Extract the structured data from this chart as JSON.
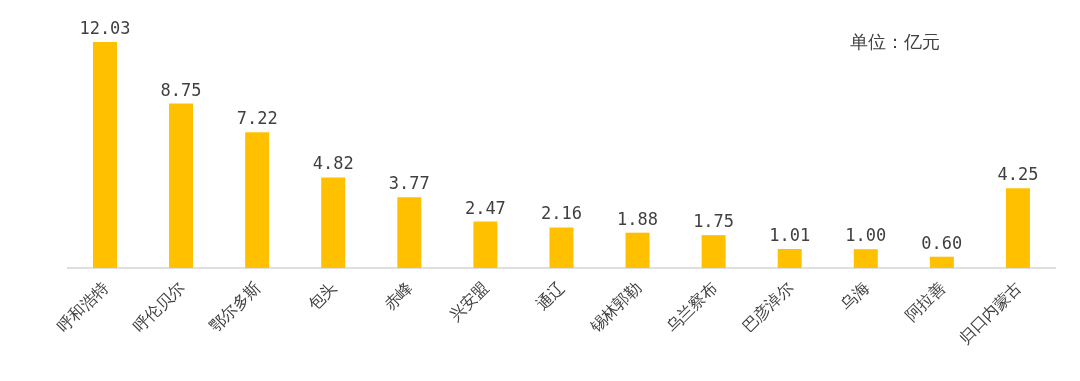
{
  "chart_data": {
    "type": "bar",
    "categories": [
      "呼和浩特",
      "呼伦贝尔",
      "鄂尔多斯",
      "包头",
      "赤峰",
      "兴安盟",
      "通辽",
      "锡林郭勒",
      "乌兰察布",
      "巴彦淖尔",
      "乌海",
      "阿拉善",
      "归口内蒙古"
    ],
    "values": [
      12.03,
      8.75,
      7.22,
      4.82,
      3.77,
      2.47,
      2.16,
      1.88,
      1.75,
      1.01,
      1.0,
      0.6,
      4.25
    ],
    "value_labels": [
      "12.03",
      "8.75",
      "7.22",
      "4.82",
      "3.77",
      "2.47",
      "2.16",
      "1.88",
      "1.75",
      "1.01",
      "1.00",
      "0.60",
      "4.25"
    ],
    "color": "#ffc000",
    "tick_labels": "x",
    "annotations": [
      "单位：亿元"
    ]
  }
}
